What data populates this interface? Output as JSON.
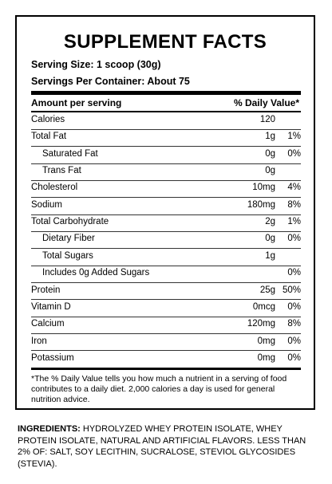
{
  "title": "SUPPLEMENT FACTS",
  "serving_size": "Serving Size: 1 scoop (30g)",
  "servings_per_container": "Servings Per Container: About 75",
  "table": {
    "header": {
      "amount": "Amount per serving",
      "daily_value": "% Daily Value*"
    },
    "rows": [
      {
        "name": "Calories",
        "amount": "120"
      },
      {
        "name": "Total Fat",
        "amount": "1g",
        "daily_value": "1%"
      },
      {
        "name": "Saturated Fat",
        "amount": "0g",
        "daily_value": "0%",
        "indent": true
      },
      {
        "name": "Trans Fat",
        "amount": "0g",
        "indent": true
      },
      {
        "name": "Cholesterol",
        "amount": "10mg",
        "daily_value": "4%"
      },
      {
        "name": "Sodium",
        "amount": "180mg",
        "daily_value": "8%"
      },
      {
        "name": "Total Carbohydrate",
        "amount": "2g",
        "daily_value": "1%"
      },
      {
        "name": "Dietary Fiber",
        "amount": "0g",
        "daily_value": "0%",
        "indent": true
      },
      {
        "name": "Total Sugars",
        "amount": "1g",
        "indent": true
      },
      {
        "name": "Includes 0g Added Sugars",
        "daily_value": "0%",
        "indent": true
      },
      {
        "name": "Protein",
        "amount": "25g",
        "daily_value": "50%"
      },
      {
        "name": "Vitamin D",
        "amount": "0mcg",
        "daily_value": "0%"
      },
      {
        "name": "Calcium",
        "amount": "120mg",
        "daily_value": "8%"
      },
      {
        "name": "Iron",
        "amount": "0mg",
        "daily_value": "0%"
      },
      {
        "name": "Potassium",
        "amount": "0mg",
        "daily_value": "0%"
      }
    ]
  },
  "footnote": "*The % Daily Value tells you how much a nutrient in a serving of food contributes to a daily diet. 2,000 calories a day is used for general nutrition advice.",
  "ingredients": {
    "label": "INGREDIENTS:",
    "text": "HYDROLYZED WHEY PROTEIN ISOLATE, WHEY PROTEIN ISOLATE, NATURAL AND ARTIFICIAL FLAVORS. LESS THAN 2% OF: SALT, SOY LECITHIN, SUCRALOSE, STEVIOL GLYCOSIDES (STEVIA)."
  }
}
